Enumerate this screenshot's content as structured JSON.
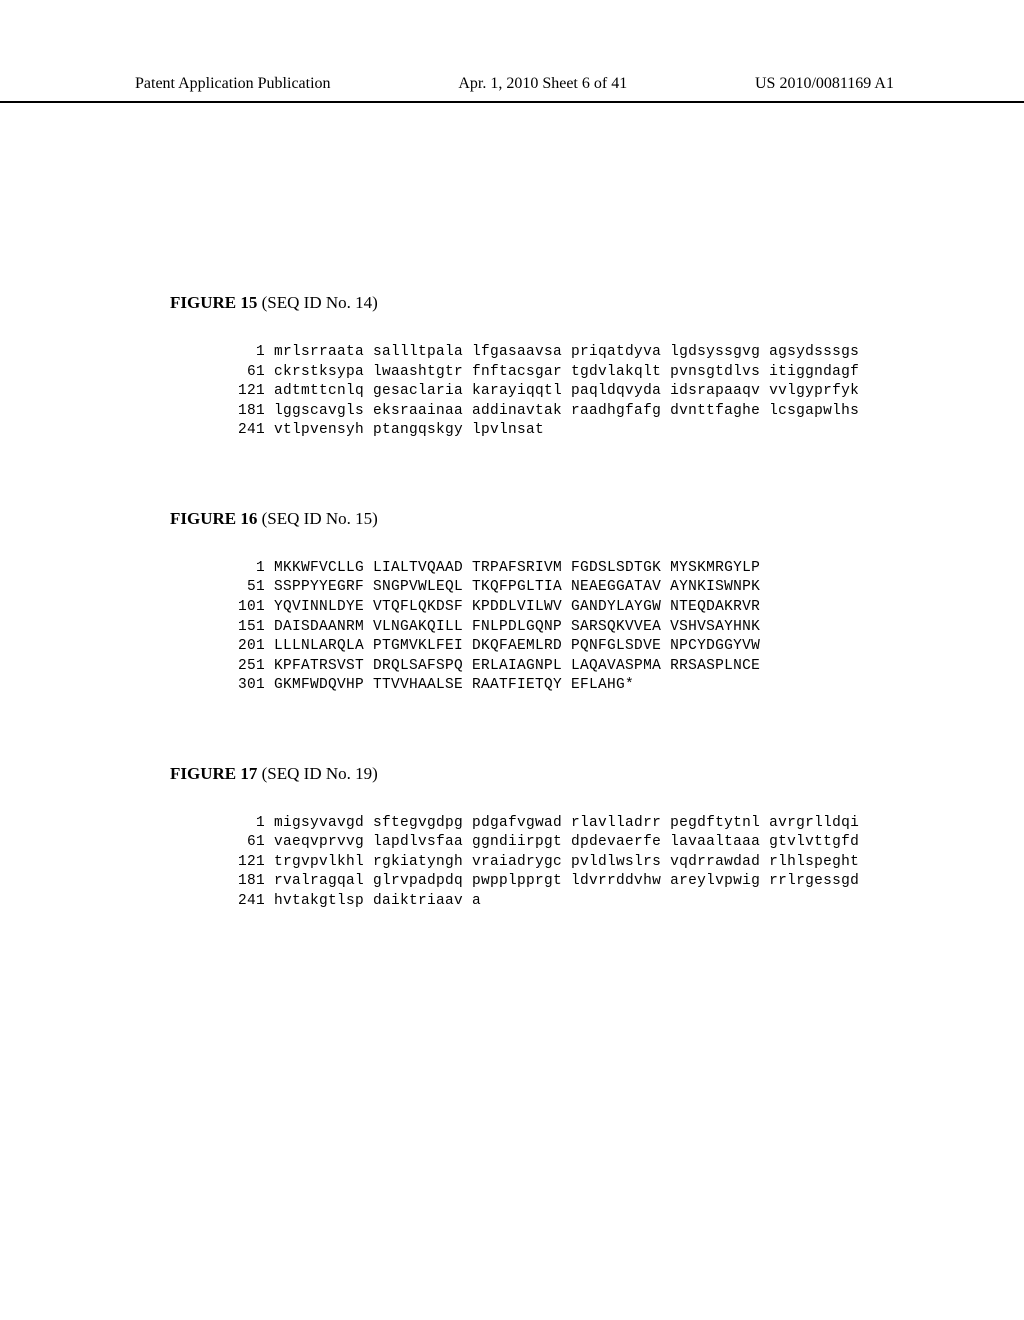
{
  "header": {
    "left": "Patent Application Publication",
    "center": "Apr. 1, 2010   Sheet 6 of 41",
    "right": "US 2010/0081169 A1"
  },
  "figures": [
    {
      "title_bold": "FIGURE 15",
      "title_rest": " (SEQ ID No. 14)",
      "lines": [
        "  1 mrlsrraata sallltpala lfgasaavsa priqatdyva lgdsyssgvg agsydsssgs",
        " 61 ckrstksypa lwaashtgtr fnftacsgar tgdvlakqlt pvnsgtdlvs itiggndagf",
        "121 adtmttcnlq gesaclaria karayiqqtl paqldqvyda idsrapaaqv vvlgyprfyk",
        "181 lggscavgls eksraainaa addinavtak raadhgfafg dvnttfaghe lcsgapwlhs",
        "241 vtlpvensyh ptangqskgy lpvlnsat"
      ]
    },
    {
      "title_bold": "FIGURE 16",
      "title_rest": " (SEQ ID No. 15)",
      "lines": [
        "  1 MKKWFVCLLG LIALTVQAAD TRPAFSRIVM FGDSLSDTGK MYSKMRGYLP",
        " 51 SSPPYYEGRF SNGPVWLEQL TKQFPGLTIA NEAEGGATAV AYNKISWNPK",
        "101 YQVINNLDYE VTQFLQKDSF KPDDLVILWV GANDYLAYGW NTEQDAKRVR",
        "151 DAISDAANRM VLNGAKQILL FNLPDLGQNP SARSQKVVEA VSHVSAYHNK",
        "201 LLLNLARQLA PTGMVKLFEI DKQFAEMLRD PQNFGLSDVE NPCYDGGYVW",
        "251 KPFATRSVST DRQLSAFSPQ ERLAIAGNPL LAQAVASPMA RRSASPLNCE",
        "301 GKMFWDQVHP TTVVHAALSE RAATFIETQY EFLAHG*"
      ]
    },
    {
      "title_bold": "FIGURE 17",
      "title_rest": " (SEQ ID No. 19)",
      "lines": [
        "  1 migsyvavgd sftegvgdpg pdgafvgwad rlavlladrr pegdftytnl avrgrlldqi",
        " 61 vaeqvprvvg lapdlvsfaa ggndiirpgt dpdevaerfe lavaaltaaa gtvlvttgfd",
        "121 trgvpvlkhl rgkiatyngh vraiadrygc pvldlwslrs vqdrrawdad rlhlspeght",
        "181 rvalragqal glrvpadpdq pwpplpprgt ldvrrddvhw areylvpwig rrlrgessgd",
        "241 hvtakgtlsp daiktriaav a"
      ]
    }
  ],
  "style": {
    "background_color": "#ffffff",
    "text_color": "#000000",
    "header_font_size": 17,
    "figure_title_font_size": 17,
    "sequence_font_size": 14.5,
    "sequence_font_family": "Courier New"
  }
}
